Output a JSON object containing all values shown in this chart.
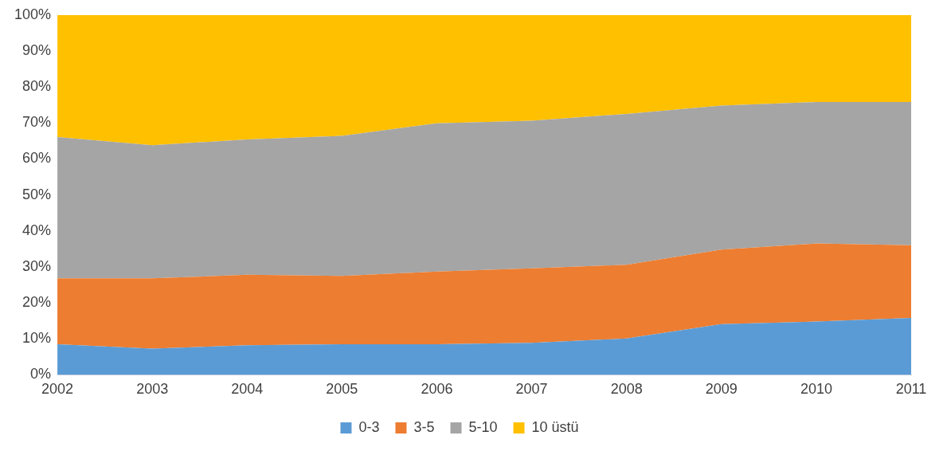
{
  "chart_data": {
    "type": "area",
    "stacked": true,
    "categories": [
      "2002",
      "2003",
      "2004",
      "2005",
      "2006",
      "2007",
      "2008",
      "2009",
      "2010",
      "2011"
    ],
    "series": [
      {
        "name": "0-3",
        "color": "#5b9bd5",
        "values": [
          8.5,
          7.3,
          8.2,
          8.5,
          8.5,
          8.9,
          10.1,
          14.1,
          14.8,
          15.8
        ]
      },
      {
        "name": "3-5",
        "color": "#ed7d31",
        "values": [
          18.3,
          19.5,
          19.6,
          19,
          20.2,
          20.7,
          20.5,
          20.7,
          21.7,
          20.2
        ]
      },
      {
        "name": "5-10",
        "color": "#a5a5a5",
        "values": [
          39.3,
          37,
          37.6,
          38.9,
          41.2,
          41,
          41.9,
          40,
          39.3,
          39.8
        ]
      },
      {
        "name": "10 üstü",
        "color": "#ffc000",
        "values": [
          33.9,
          36.2,
          34.6,
          33.6,
          30.1,
          29.4,
          27.5,
          25.2,
          24.2,
          24.2
        ]
      }
    ],
    "ylim": [
      0,
      100
    ],
    "yticks": [
      {
        "value": 0,
        "label": "0%"
      },
      {
        "value": 10,
        "label": "10%"
      },
      {
        "value": 20,
        "label": "20%"
      },
      {
        "value": 30,
        "label": "30%"
      },
      {
        "value": 40,
        "label": "40%"
      },
      {
        "value": 50,
        "label": "50%"
      },
      {
        "value": 60,
        "label": "60%"
      },
      {
        "value": 70,
        "label": "70%"
      },
      {
        "value": 80,
        "label": "80%"
      },
      {
        "value": 90,
        "label": "90%"
      },
      {
        "value": 100,
        "label": "100%"
      }
    ],
    "grid": false,
    "legend": "bottom"
  }
}
